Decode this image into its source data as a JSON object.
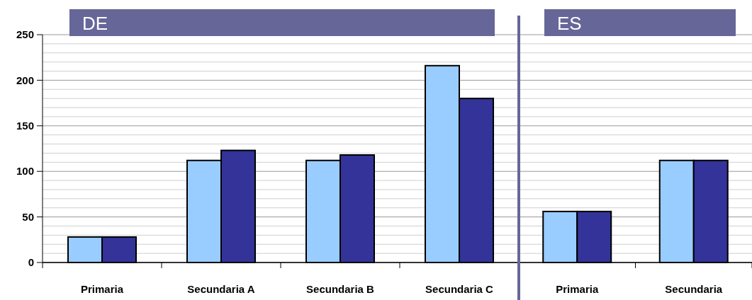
{
  "chart_data": [
    {
      "type": "bar",
      "title": "DE",
      "categories": [
        "Primaria",
        "Secundaria A",
        "Secundaria B",
        "Secundaria C"
      ],
      "series": [
        {
          "color": "#99ccff",
          "values": [
            28,
            112,
            112,
            216
          ]
        },
        {
          "color": "#333399",
          "values": [
            28,
            123,
            118,
            180
          ]
        }
      ],
      "ylim": [
        0,
        250
      ],
      "yticks": [
        0,
        {
          "value": 10,
          "label": null
        },
        {
          "value": 20,
          "label": null
        },
        {
          "value": 30,
          "label": null
        },
        {
          "value": 40,
          "label": null
        },
        50,
        {
          "value": 60,
          "label": null
        },
        {
          "value": 70,
          "label": null
        },
        {
          "value": 80,
          "label": null
        },
        {
          "value": 90,
          "label": null
        },
        100,
        {
          "value": 110,
          "label": null
        },
        {
          "value": 120,
          "label": null
        },
        {
          "value": 130,
          "label": null
        },
        {
          "value": 140,
          "label": null
        },
        150,
        {
          "value": 160,
          "label": null
        },
        {
          "value": 170,
          "label": null
        },
        {
          "value": 180,
          "label": null
        },
        {
          "value": 190,
          "label": null
        },
        200,
        {
          "value": 210,
          "label": null
        },
        {
          "value": 220,
          "label": null
        },
        {
          "value": 230,
          "label": null
        },
        {
          "value": 240,
          "label": null
        },
        250
      ],
      "grid": "y"
    },
    {
      "type": "bar",
      "title": "ES",
      "categories": [
        "Primaria",
        "Secundaria"
      ],
      "series": [
        {
          "color": "#99ccff",
          "values": [
            56,
            112
          ]
        },
        {
          "color": "#333399",
          "values": [
            56,
            112
          ]
        }
      ],
      "ylim": [
        0,
        250
      ],
      "yticks": [
        0,
        {
          "value": 10,
          "label": null
        },
        {
          "value": 20,
          "label": null
        },
        {
          "value": 30,
          "label": null
        },
        {
          "value": 40,
          "label": null
        },
        50,
        {
          "value": 60,
          "label": null
        },
        {
          "value": 70,
          "label": null
        },
        {
          "value": 80,
          "label": null
        },
        {
          "value": 90,
          "label": null
        },
        100,
        {
          "value": 110,
          "label": null
        },
        {
          "value": 120,
          "label": null
        },
        {
          "value": 130,
          "label": null
        },
        {
          "value": 140,
          "label": null
        },
        150,
        {
          "value": 160,
          "label": null
        },
        {
          "value": 170,
          "label": null
        },
        {
          "value": 180,
          "label": null
        },
        {
          "value": 190,
          "label": null
        },
        200,
        {
          "value": 210,
          "label": null
        },
        {
          "value": 220,
          "label": null
        },
        {
          "value": 230,
          "label": null
        },
        {
          "value": 240,
          "label": null
        },
        250
      ],
      "grid": "y",
      "tick_labels": "x"
    }
  ]
}
